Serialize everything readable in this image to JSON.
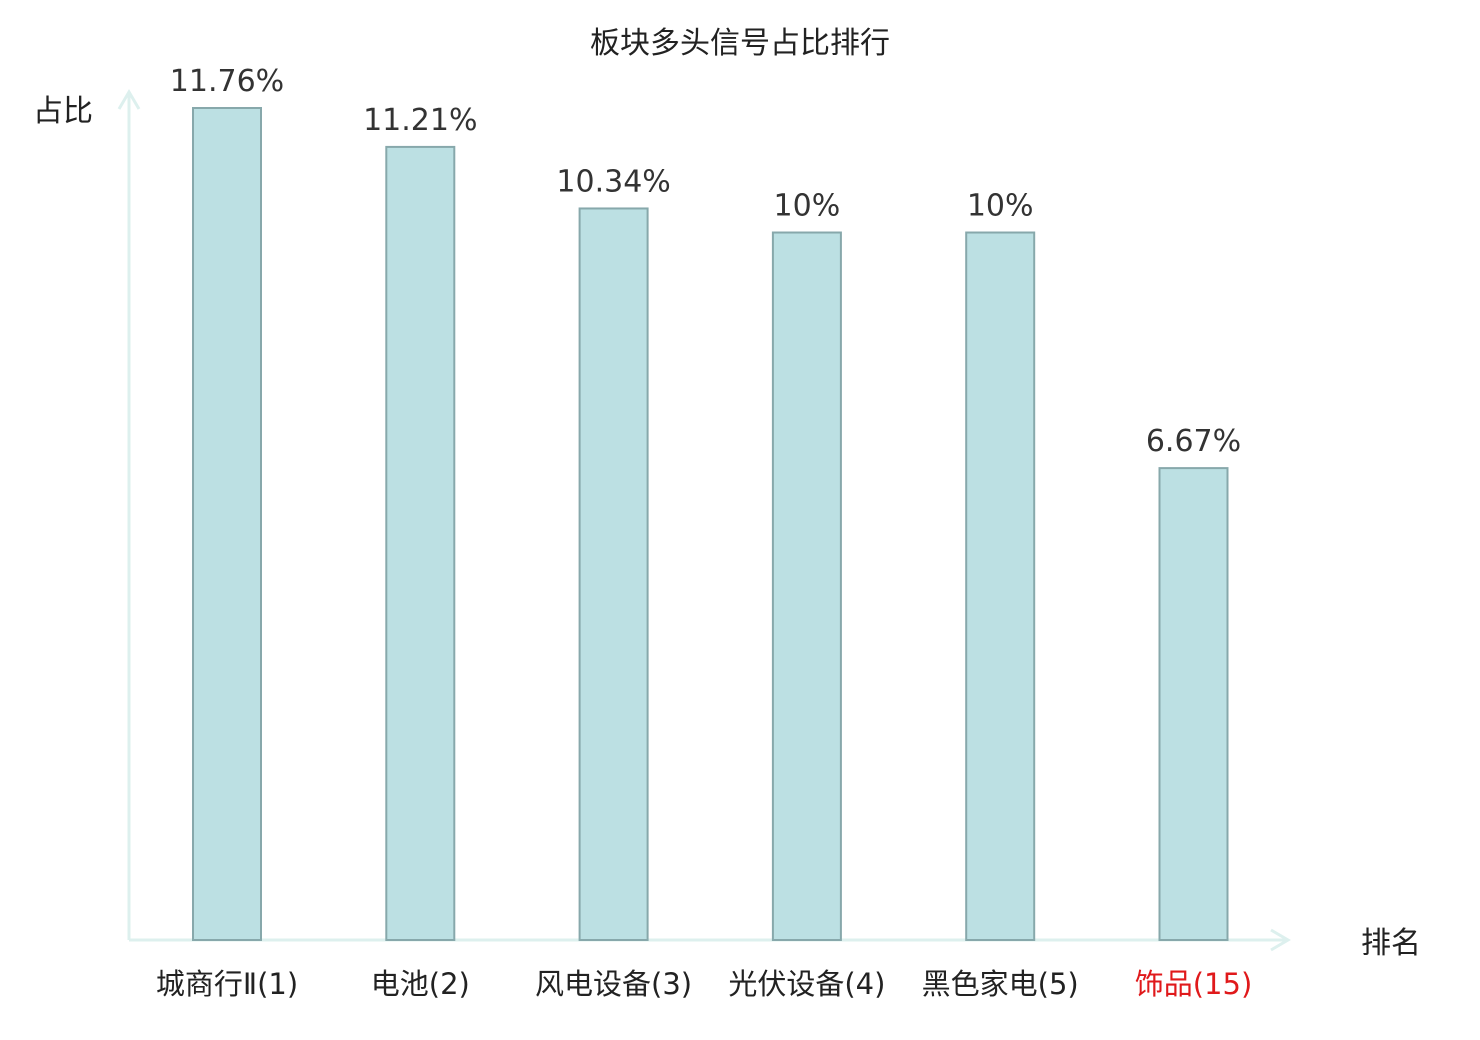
{
  "chart_data": {
    "type": "bar",
    "title": "板块多头信号占比排行",
    "xlabel": "排名",
    "ylabel": "占比",
    "categories": [
      "城商行Ⅱ(1)",
      "电池(2)",
      "风电设备(3)",
      "光伏设备(4)",
      "黑色家电(5)",
      "饰品(15)"
    ],
    "values": [
      11.76,
      11.21,
      10.34,
      10,
      10,
      6.67
    ],
    "value_labels": [
      "11.76%",
      "11.21%",
      "10.34%",
      "10%",
      "10%",
      "6.67%"
    ],
    "highlight_index": 5,
    "ylim": [
      0,
      11.76
    ],
    "grid": false,
    "legend": "none",
    "colors": {
      "bar_fill": "#bce0e3",
      "bar_stroke": "#87a8ab",
      "axis": "#ddf0ee",
      "text": "#222222",
      "value_label": "#333333",
      "highlight_text": "#e0191b"
    }
  }
}
